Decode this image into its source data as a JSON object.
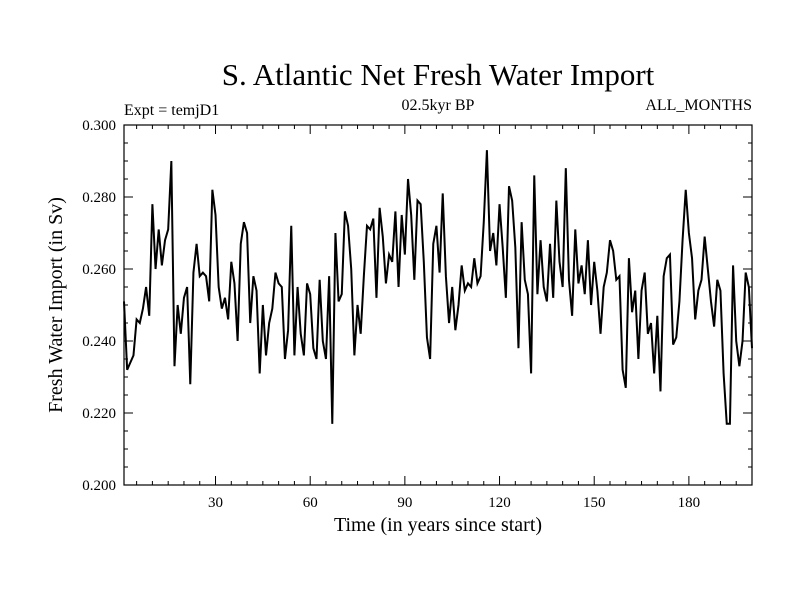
{
  "chart_data": {
    "type": "line",
    "title": "S. Atlantic Net Fresh Water Import",
    "subtitle_left": "Expt = temjD1",
    "subtitle_center": "02.5kyr BP",
    "subtitle_right": "ALL_MONTHS",
    "xlabel": "Time (in years since start)",
    "ylabel": "Fresh Water Import (in Sv)",
    "xlim": [
      1,
      200
    ],
    "ylim": [
      0.2,
      0.3
    ],
    "x_ticks": [
      30,
      60,
      90,
      120,
      150,
      180
    ],
    "x_tick_labels": [
      "30",
      "60",
      "90",
      "120",
      "150",
      "180"
    ],
    "y_ticks": [
      0.2,
      0.22,
      0.24,
      0.26,
      0.28,
      0.3
    ],
    "y_tick_labels": [
      "0.200",
      "0.220",
      "0.240",
      "0.260",
      "0.280",
      "0.300"
    ],
    "grid": false,
    "series": [
      {
        "name": "Fresh Water Import",
        "color": "#000000",
        "x": [
          1,
          2,
          3,
          4,
          5,
          6,
          7,
          8,
          9,
          10,
          11,
          12,
          13,
          14,
          15,
          16,
          17,
          18,
          19,
          20,
          21,
          22,
          23,
          24,
          25,
          26,
          27,
          28,
          29,
          30,
          31,
          32,
          33,
          34,
          35,
          36,
          37,
          38,
          39,
          40,
          41,
          42,
          43,
          44,
          45,
          46,
          47,
          48,
          49,
          50,
          51,
          52,
          53,
          54,
          55,
          56,
          57,
          58,
          59,
          60,
          61,
          62,
          63,
          64,
          65,
          66,
          67,
          68,
          69,
          70,
          71,
          72,
          73,
          74,
          75,
          76,
          77,
          78,
          79,
          80,
          81,
          82,
          83,
          84,
          85,
          86,
          87,
          88,
          89,
          90,
          91,
          92,
          93,
          94,
          95,
          96,
          97,
          98,
          99,
          100,
          101,
          102,
          103,
          104,
          105,
          106,
          107,
          108,
          109,
          110,
          111,
          112,
          113,
          114,
          115,
          116,
          117,
          118,
          119,
          120,
          121,
          122,
          123,
          124,
          125,
          126,
          127,
          128,
          129,
          130,
          131,
          132,
          133,
          134,
          135,
          136,
          137,
          138,
          139,
          140,
          141,
          142,
          143,
          144,
          145,
          146,
          147,
          148,
          149,
          150,
          151,
          152,
          153,
          154,
          155,
          156,
          157,
          158,
          159,
          160,
          161,
          162,
          163,
          164,
          165,
          166,
          167,
          168,
          169,
          170,
          171,
          172,
          173,
          174,
          175,
          176,
          177,
          178,
          179,
          180,
          181,
          182,
          183,
          184,
          185,
          186,
          187,
          188,
          189,
          190,
          191,
          192,
          193,
          194,
          195,
          196,
          197,
          198,
          199,
          200
        ],
        "values": [
          0.251,
          0.232,
          0.234,
          0.236,
          0.246,
          0.245,
          0.249,
          0.255,
          0.247,
          0.278,
          0.26,
          0.271,
          0.261,
          0.268,
          0.271,
          0.29,
          0.233,
          0.25,
          0.242,
          0.252,
          0.255,
          0.228,
          0.259,
          0.267,
          0.258,
          0.259,
          0.258,
          0.251,
          0.282,
          0.275,
          0.255,
          0.249,
          0.252,
          0.246,
          0.262,
          0.256,
          0.24,
          0.267,
          0.273,
          0.27,
          0.245,
          0.258,
          0.254,
          0.231,
          0.25,
          0.236,
          0.245,
          0.249,
          0.259,
          0.256,
          0.255,
          0.235,
          0.243,
          0.272,
          0.236,
          0.255,
          0.242,
          0.236,
          0.256,
          0.253,
          0.238,
          0.235,
          0.257,
          0.24,
          0.235,
          0.258,
          0.217,
          0.27,
          0.251,
          0.253,
          0.276,
          0.272,
          0.26,
          0.236,
          0.25,
          0.242,
          0.258,
          0.272,
          0.271,
          0.274,
          0.252,
          0.277,
          0.269,
          0.256,
          0.264,
          0.262,
          0.276,
          0.255,
          0.275,
          0.264,
          0.285,
          0.275,
          0.257,
          0.279,
          0.278,
          0.262,
          0.241,
          0.235,
          0.267,
          0.272,
          0.259,
          0.281,
          0.258,
          0.245,
          0.255,
          0.243,
          0.25,
          0.261,
          0.254,
          0.256,
          0.255,
          0.263,
          0.256,
          0.258,
          0.273,
          0.293,
          0.265,
          0.27,
          0.261,
          0.278,
          0.266,
          0.252,
          0.283,
          0.279,
          0.266,
          0.238,
          0.273,
          0.257,
          0.253,
          0.231,
          0.286,
          0.253,
          0.268,
          0.255,
          0.251,
          0.267,
          0.252,
          0.279,
          0.262,
          0.255,
          0.288,
          0.257,
          0.247,
          0.271,
          0.256,
          0.261,
          0.253,
          0.268,
          0.25,
          0.262,
          0.254,
          0.242,
          0.255,
          0.259,
          0.268,
          0.265,
          0.257,
          0.258,
          0.232,
          0.227,
          0.263,
          0.248,
          0.254,
          0.235,
          0.254,
          0.259,
          0.242,
          0.245,
          0.231,
          0.247,
          0.226,
          0.258,
          0.263,
          0.264,
          0.239,
          0.241,
          0.251,
          0.268,
          0.282,
          0.27,
          0.263,
          0.246,
          0.254,
          0.257,
          0.269,
          0.26,
          0.251,
          0.244,
          0.257,
          0.254,
          0.231,
          0.217,
          0.217,
          0.261,
          0.24,
          0.233,
          0.24,
          0.259,
          0.255,
          0.238
        ]
      }
    ]
  }
}
